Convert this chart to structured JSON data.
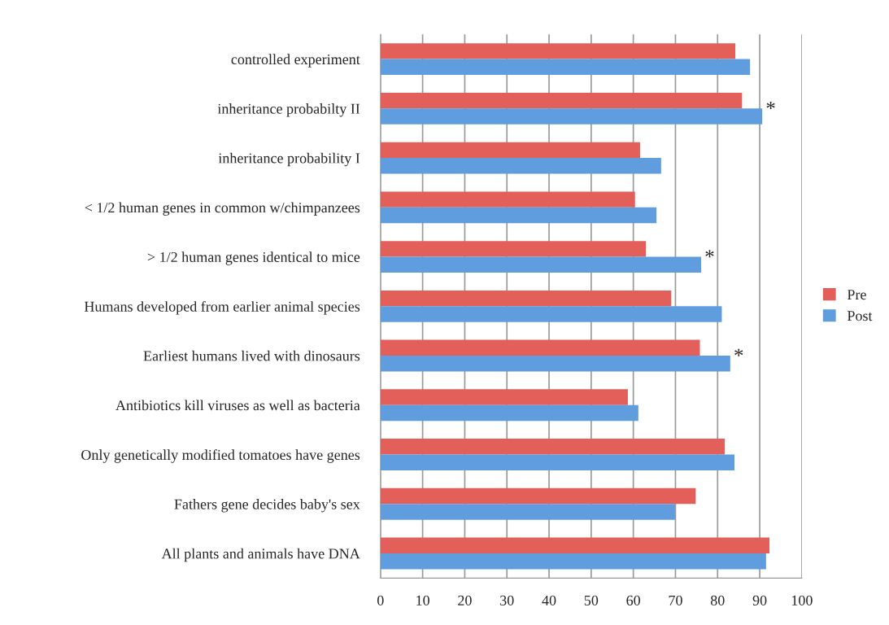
{
  "chart_data": {
    "type": "bar",
    "orientation": "horizontal",
    "categories": [
      "controlled experiment",
      "inheritance probabilty II",
      "inheritance probability I",
      "< 1/2 human genes in common w/chimpanzees",
      "> 1/2 human genes identical to mice",
      "Humans developed from earlier animal species",
      "Earliest humans lived with dinosaurs",
      "Antibiotics kill viruses as well as bacteria",
      "Only genetically modified tomatoes have genes",
      "Fathers gene decides baby's sex",
      "All plants and animals have DNA"
    ],
    "series": [
      {
        "name": "Pre",
        "color": "#e25f5a",
        "values": [
          84.2,
          85.8,
          61.6,
          60.4,
          63.0,
          69.0,
          75.8,
          58.7,
          81.7,
          74.8,
          92.3
        ]
      },
      {
        "name": "Post",
        "color": "#5f9ddf",
        "values": [
          87.7,
          90.6,
          66.6,
          65.5,
          76.1,
          81.0,
          83.0,
          61.2,
          84.0,
          69.9,
          91.5
        ]
      }
    ],
    "xlim": [
      0,
      100
    ],
    "xticks": [
      0,
      10,
      20,
      30,
      40,
      50,
      60,
      70,
      80,
      90,
      100
    ],
    "grid": "x",
    "legend": "right",
    "annotations": [
      {
        "text": "*",
        "x": 90.6,
        "y": "inheritance probabilty II"
      },
      {
        "text": "*",
        "x": 76.1,
        "y": "> 1/2 human genes identical to mice"
      },
      {
        "text": "*",
        "x": 83.0,
        "y": "Earliest humans lived with dinosaurs"
      }
    ]
  }
}
